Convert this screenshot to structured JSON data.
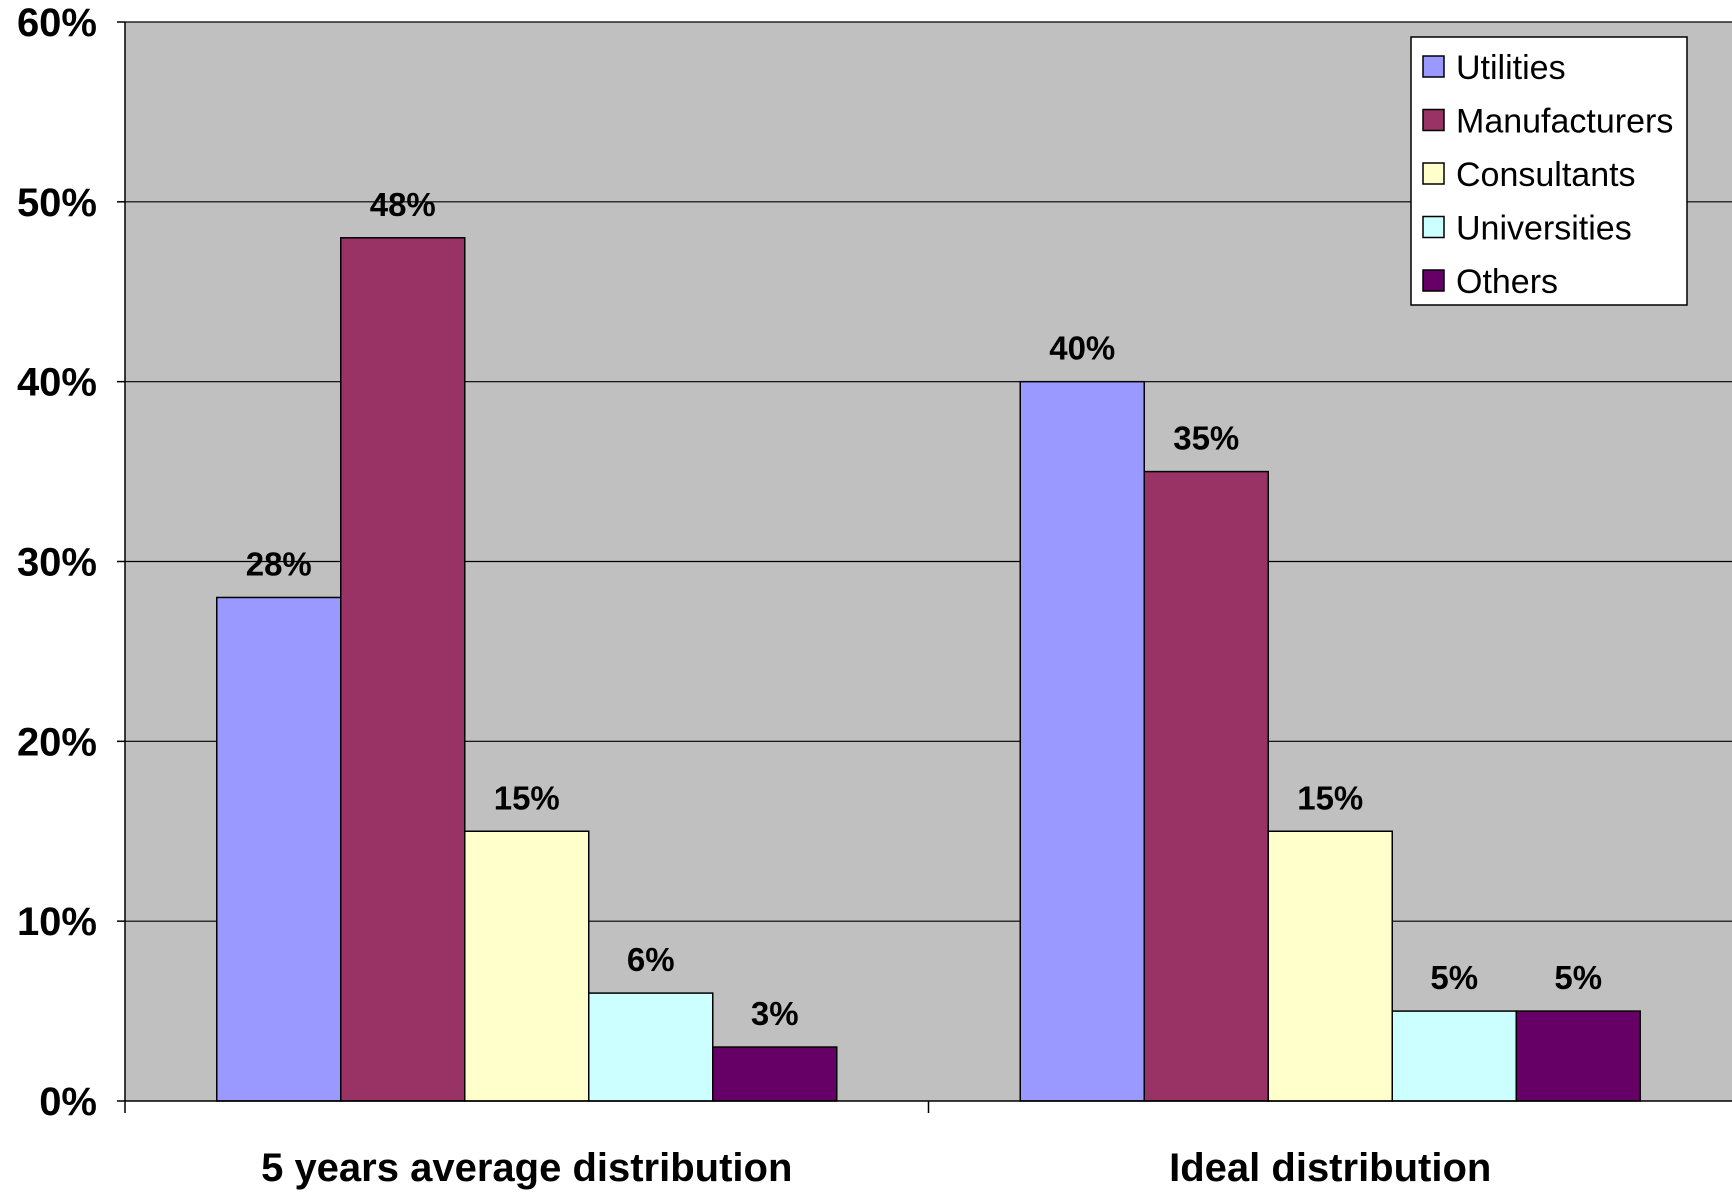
{
  "chart_data": {
    "type": "bar",
    "categories": [
      "5 years average distribution",
      "Ideal distribution"
    ],
    "series": [
      {
        "name": "Utilities",
        "color": "#9999FF",
        "values": [
          28,
          40
        ],
        "labels": [
          "28%",
          "40%"
        ]
      },
      {
        "name": "Manufacturers",
        "color": "#993366",
        "values": [
          48,
          35
        ],
        "labels": [
          "48%",
          "35%"
        ]
      },
      {
        "name": "Consultants",
        "color": "#FFFFCC",
        "values": [
          15,
          15
        ],
        "labels": [
          "15%",
          "15%"
        ]
      },
      {
        "name": "Universities",
        "color": "#CCFFFF",
        "values": [
          6,
          5
        ],
        "labels": [
          "6%",
          "5%"
        ]
      },
      {
        "name": "Others",
        "color": "#660066",
        "values": [
          3,
          5
        ],
        "labels": [
          "3%",
          "5%"
        ]
      }
    ],
    "ylim": [
      0,
      60
    ],
    "yticks": [
      "0%",
      "10%",
      "20%",
      "30%",
      "40%",
      "50%",
      "60%"
    ],
    "title": "",
    "xlabel": "",
    "ylabel": "",
    "grid": true,
    "legend_position": "top-right",
    "plot_background": "#C0C0C0"
  }
}
